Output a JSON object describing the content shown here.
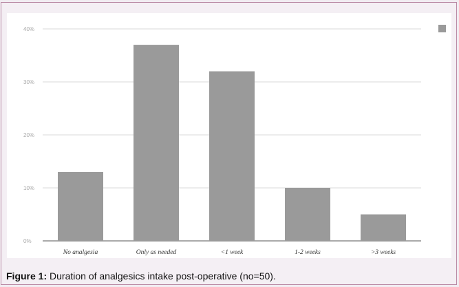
{
  "chart_data": {
    "type": "bar",
    "categories": [
      "No analgesia",
      "Only as needed",
      "<1 week",
      "1-2 weeks",
      ">3 weeks"
    ],
    "values": [
      13,
      37,
      32,
      10,
      5
    ],
    "yticks": [
      "0%",
      "10%",
      "20%",
      "30%",
      "40%"
    ],
    "ylim": [
      0,
      40
    ],
    "grid": true,
    "legend": "top-right",
    "bar_color": "#9a9a9a"
  },
  "caption": {
    "label": "Figure 1:",
    "text": " Duration of analgesics intake post-operative (no=50)."
  }
}
